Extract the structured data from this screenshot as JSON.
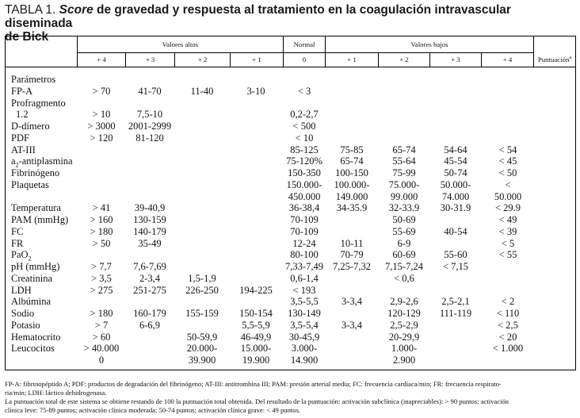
{
  "title": {
    "prefix": "TABLA 1. ",
    "score": "Score",
    "rest_line1": " de gravedad y respuesta al tratamiento en la coagulación intravascular diseminada",
    "line2": "de Bick"
  },
  "header": {
    "group_high": "Valores altos",
    "group_normal": "Normal",
    "group_low": "Valores bajos",
    "cols": [
      "+ 4",
      "+ 3",
      "+ 2",
      "+ 1",
      "0",
      "+ 1",
      "+ 2",
      "+ 3",
      "+ 4",
      "Puntuación"
    ],
    "puntuacion_sup": "a"
  },
  "rows": [
    {
      "label": "Parámetros",
      "cells": [
        "",
        "",
        "",
        "",
        "",
        "",
        "",
        "",
        ""
      ]
    },
    {
      "label": "FP-A",
      "cells": [
        "> 70",
        "41-70",
        "11-40",
        "3-10",
        "< 3",
        "",
        "",
        "",
        ""
      ]
    },
    {
      "label": "Profragmento",
      "cells": [
        "",
        "",
        "",
        "",
        "",
        "",
        "",
        "",
        ""
      ]
    },
    {
      "label": "1.2",
      "cells": [
        "> 10",
        "7,5-10",
        "",
        "",
        "0,2-2,7",
        "",
        "",
        "",
        ""
      ]
    },
    {
      "label": "D-dímero",
      "cells": [
        "> 3000",
        "2001-2999",
        "",
        "",
        "< 500",
        "",
        "",
        "",
        ""
      ]
    },
    {
      "label": "PDF",
      "cells": [
        "> 120",
        "81-120",
        "",
        "",
        "< 10",
        "",
        "",
        "",
        ""
      ]
    },
    {
      "label": "AT-III",
      "cells": [
        "",
        "",
        "",
        "",
        "85-125",
        "75-85",
        "65-74",
        "54-64",
        "< 54"
      ]
    },
    {
      "label": "a2-antiplasmina",
      "cells": [
        "",
        "",
        "",
        "",
        "75-120%",
        "65-74",
        "55-64",
        "45-54",
        "< 45"
      ]
    },
    {
      "label": "Fibrinógeno",
      "cells": [
        "",
        "",
        "",
        "",
        "150-350",
        "100-150",
        "75-99",
        "50-74",
        "< 50"
      ]
    },
    {
      "label": "Plaquetas",
      "cells": [
        "",
        "",
        "",
        "",
        "150.000-",
        "100.000-",
        "75.000-",
        "50.000-",
        "<"
      ]
    },
    {
      "label": "",
      "cells": [
        "",
        "",
        "",
        "",
        "450.000",
        "149.000",
        "99.000",
        "74.000",
        "50.000"
      ]
    },
    {
      "label": "Temperatura",
      "cells": [
        "> 41",
        "39-40,9",
        "",
        "",
        "36-38,4",
        "34-35.9",
        "32-33.9",
        "30-31.9",
        "< 29.9"
      ]
    },
    {
      "label": "PAM (mmHg)",
      "cells": [
        "> 160",
        "130-159",
        "",
        "",
        "70-109",
        "",
        "50-69",
        "",
        "< 49"
      ]
    },
    {
      "label": "FC",
      "cells": [
        "> 180",
        "140-179",
        "",
        "",
        "70-109",
        "",
        "55-69",
        "40-54",
        "< 39"
      ]
    },
    {
      "label": "FR",
      "cells": [
        "> 50",
        "35-49",
        "",
        "",
        "12-24",
        "10-11",
        "6-9",
        "",
        "< 5"
      ]
    },
    {
      "label": "PaO2",
      "cells": [
        "",
        "",
        "",
        "",
        "80-100",
        "70-79",
        "60-69",
        "55-60",
        "< 55"
      ]
    },
    {
      "label": "pH (mmHg)",
      "cells": [
        "> 7,7",
        "7,6-7,69",
        "",
        "",
        "7,33-7,49",
        "7,25-7,32",
        "7,15-7,24",
        "< 7,15",
        ""
      ]
    },
    {
      "label": "Creatinina",
      "cells": [
        "> 3,5",
        "2-3,4",
        "1,5-1,9",
        "",
        "0,6-1,4",
        "",
        "< 0,6",
        "",
        ""
      ]
    },
    {
      "label": "LDH",
      "cells": [
        "> 275",
        "251-275",
        "226-250",
        "194-225",
        "< 193",
        "",
        "",
        "",
        ""
      ]
    },
    {
      "label": "Albúmina",
      "cells": [
        "",
        "",
        "",
        "",
        "3,5-5,5",
        "3-3,4",
        "2,9-2,6",
        "2,5-2,1",
        "< 2"
      ]
    },
    {
      "label": "Sodio",
      "cells": [
        "> 180",
        "160-179",
        "155-159",
        "150-154",
        "130-149",
        "",
        "120-129",
        "111-119",
        "< 110"
      ]
    },
    {
      "label": "Potasio",
      "cells": [
        "> 7",
        "6-6,9",
        "",
        "5,5-5,9",
        "3,5-5,4",
        "3-3,4",
        "2,5-2,9",
        "",
        "< 2,5"
      ]
    },
    {
      "label": "Hematocrito",
      "cells": [
        "> 60",
        "",
        "50-59,9",
        "46-49,9",
        "30-45,9",
        "",
        "20-29,9",
        "",
        "< 20"
      ]
    },
    {
      "label": "Leucocitos",
      "cells": [
        "> 40.000",
        "",
        "20.000-",
        "15.000-",
        "3.000-",
        "",
        "1.000-",
        "",
        "< 1.000"
      ]
    },
    {
      "label": "",
      "cells": [
        "0",
        "",
        "39.900",
        "19.900",
        "14.900",
        "",
        "2.900",
        "",
        ""
      ]
    }
  ],
  "notes": [
    "FP-A: fibrinopéptido A; PDF: productos de degradación del fibrinógeno; AT-III: antitrombina III; PAM: presión arterial media; FC: frecuencia cardíaca/min; FR: frecuencia respirato-",
    "ria/min; LDH: láctico dehidrogenasa.",
    "La puntuación total de este sistema se obtiene restando de 100 la puntuación total obtenida. Del resultado de la puntuación: activación subclínica (inapreciables): > 90 puntos; activación",
    "clínica leve: 75-89 puntos; activación clínica moderada: 50-74 puntos; activación clínica grave: < 49 puntos."
  ]
}
